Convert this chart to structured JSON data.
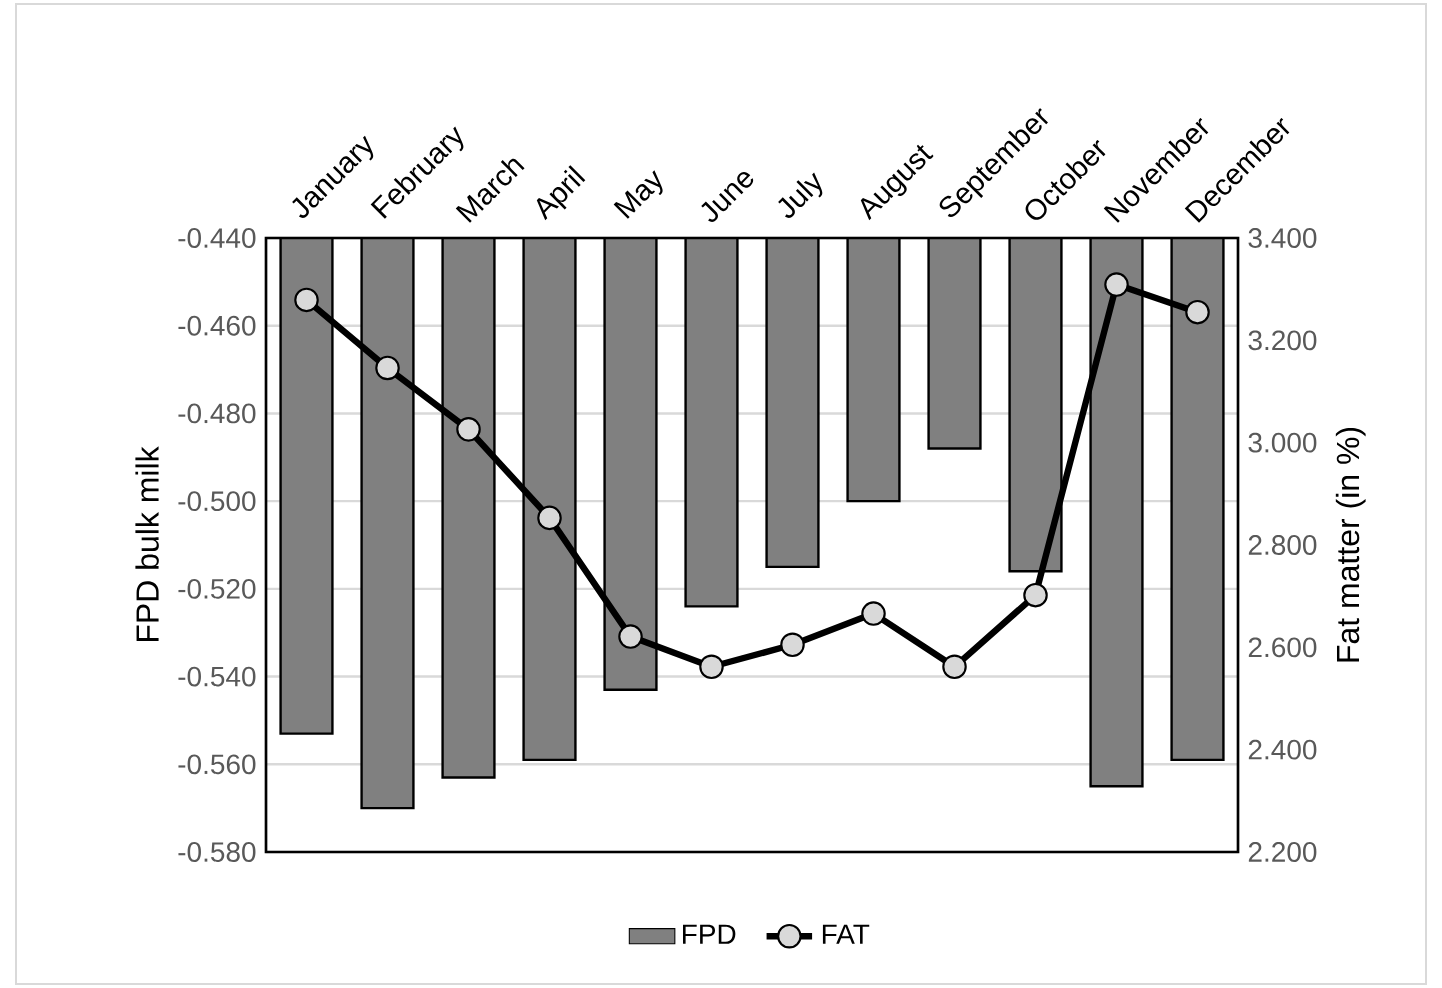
{
  "chart_data": {
    "type": "bar",
    "categories": [
      "January",
      "February",
      "March",
      "April",
      "May",
      "June",
      "July",
      "August",
      "September",
      "October",
      "November",
      "December"
    ],
    "series": [
      {
        "name": "FPD",
        "color": "#808080",
        "values": [
          -0.553,
          -0.57,
          -0.563,
          -0.559,
          -0.543,
          -0.524,
          -0.515,
          -0.5,
          -0.488,
          -0.516,
          -0.565,
          -0.559
        ]
      },
      {
        "name": "FAT",
        "type": "line",
        "axis": "y2",
        "color": "#000000",
        "marker": "circle",
        "values": [
          3.279,
          3.146,
          3.026,
          2.853,
          2.621,
          2.562,
          2.605,
          2.666,
          2.562,
          2.702,
          3.309,
          3.255
        ]
      }
    ],
    "ylabel": "FPD bulk milk",
    "y2label": "Fat matter (in %)",
    "ylim": [
      -0.58,
      -0.44
    ],
    "yticks": [
      {
        "value": -0.58,
        "label": "-0.580"
      },
      {
        "value": -0.56,
        "label": "-0.560"
      },
      {
        "value": -0.54,
        "label": "-0.540"
      },
      {
        "value": -0.52,
        "label": "-0.520"
      },
      {
        "value": -0.5,
        "label": "-0.500"
      },
      {
        "value": -0.48,
        "label": "-0.480"
      },
      {
        "value": -0.46,
        "label": "-0.460"
      },
      {
        "value": -0.44,
        "label": "-0.440"
      }
    ],
    "y2lim": [
      2.2,
      3.4
    ],
    "y2ticks": [
      {
        "value": 2.2,
        "label": "2.200"
      },
      {
        "value": 2.4,
        "label": "2.400"
      },
      {
        "value": 2.6,
        "label": "2.600"
      },
      {
        "value": 2.8,
        "label": "2.800"
      },
      {
        "value": 3.0,
        "label": "3.000"
      },
      {
        "value": 3.2,
        "label": "3.200"
      },
      {
        "value": 3.4,
        "label": "3.400"
      }
    ],
    "grid": "y",
    "legend": "bottom"
  }
}
